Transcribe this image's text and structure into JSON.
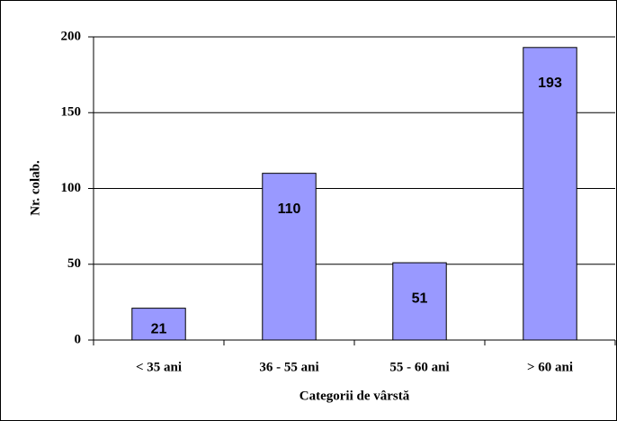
{
  "chart_data": {
    "type": "bar",
    "categories": [
      "< 35 ani",
      "36 - 55 ani",
      "55 - 60 ani",
      "> 60 ani"
    ],
    "values": [
      21,
      110,
      51,
      193
    ],
    "color": "#9999ff",
    "xlabel": "Categorii de vârstă",
    "ylabel": "Nr. colab.",
    "ylim": [
      0,
      200
    ],
    "yticks": [
      0,
      50,
      100,
      150,
      200
    ],
    "grid": true
  }
}
